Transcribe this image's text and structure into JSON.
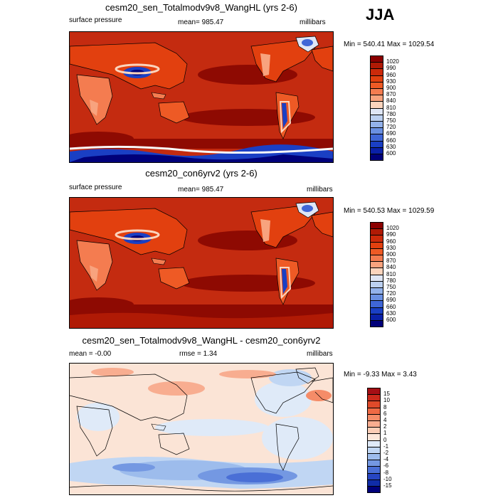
{
  "season": "JJA",
  "panels": [
    {
      "title": "cesm20_sen_Totalmodv9v8_WangHL (yrs 2-6)",
      "left_label": "surface pressure",
      "center_label": "mean= 985.47",
      "right_label": "millibars",
      "minmax": "Min = 540.41 Max = 1029.54",
      "legend_labels": [
        "1020",
        "990",
        "960",
        "930",
        "900",
        "870",
        "840",
        "810",
        "780",
        "750",
        "720",
        "690",
        "660",
        "630",
        "600"
      ],
      "legend_colors": [
        "#8b0000",
        "#b01a05",
        "#cc2a0a",
        "#e2400f",
        "#ee5a25",
        "#f47c50",
        "#f8a37e",
        "#fbd4bd",
        "#dfe6f5",
        "#bcd0f0",
        "#93b2ea",
        "#6a90e2",
        "#3f66d7",
        "#1a3fc4",
        "#0a20a8",
        "#00007a"
      ]
    },
    {
      "title": "cesm20_con6yrv2 (yrs 2-6)",
      "left_label": "surface pressure",
      "center_label": "mean= 985.47",
      "right_label": "millibars",
      "minmax": "Min = 540.53 Max = 1029.59",
      "legend_labels": [
        "1020",
        "990",
        "960",
        "930",
        "900",
        "870",
        "840",
        "810",
        "780",
        "750",
        "720",
        "690",
        "660",
        "630",
        "600"
      ],
      "legend_colors": [
        "#8b0000",
        "#b01a05",
        "#cc2a0a",
        "#e2400f",
        "#ee5a25",
        "#f47c50",
        "#f8a37e",
        "#fbd4bd",
        "#dfe6f5",
        "#bcd0f0",
        "#93b2ea",
        "#6a90e2",
        "#3f66d7",
        "#1a3fc4",
        "#0a20a8",
        "#00007a"
      ]
    },
    {
      "title": "cesm20_sen_Totalmodv9v8_WangHL - cesm20_con6yrv2",
      "left_label": "mean =  -0.00",
      "center_label": "rmse =  1.34",
      "right_label": "millibars",
      "minmax": "Min =  -9.33 Max =   3.43",
      "legend_labels": [
        "15",
        "10",
        "8",
        "6",
        "4",
        "2",
        "1",
        "0",
        "-1",
        "-2",
        "-4",
        "-6",
        "-8",
        "-10",
        "-15"
      ],
      "legend_colors": [
        "#a50f15",
        "#cb2a1c",
        "#e04a2a",
        "#ef6a45",
        "#f58c68",
        "#f8ad90",
        "#fbcdb6",
        "#fde7da",
        "#dfeaf8",
        "#c0d6f3",
        "#9dbcec",
        "#7498e2",
        "#4a6fd6",
        "#2746c2",
        "#102ca8",
        "#00007a"
      ]
    }
  ],
  "colors": {
    "field_red": "#c42b10",
    "field_dark": "#8e0a02",
    "field_light": "#f4a07c",
    "land_pale": "#fbd4bd",
    "diff_bg": "#fbe4d6",
    "diff_blue": "#c8daf4",
    "diff_deep": "#4a6fd6"
  }
}
